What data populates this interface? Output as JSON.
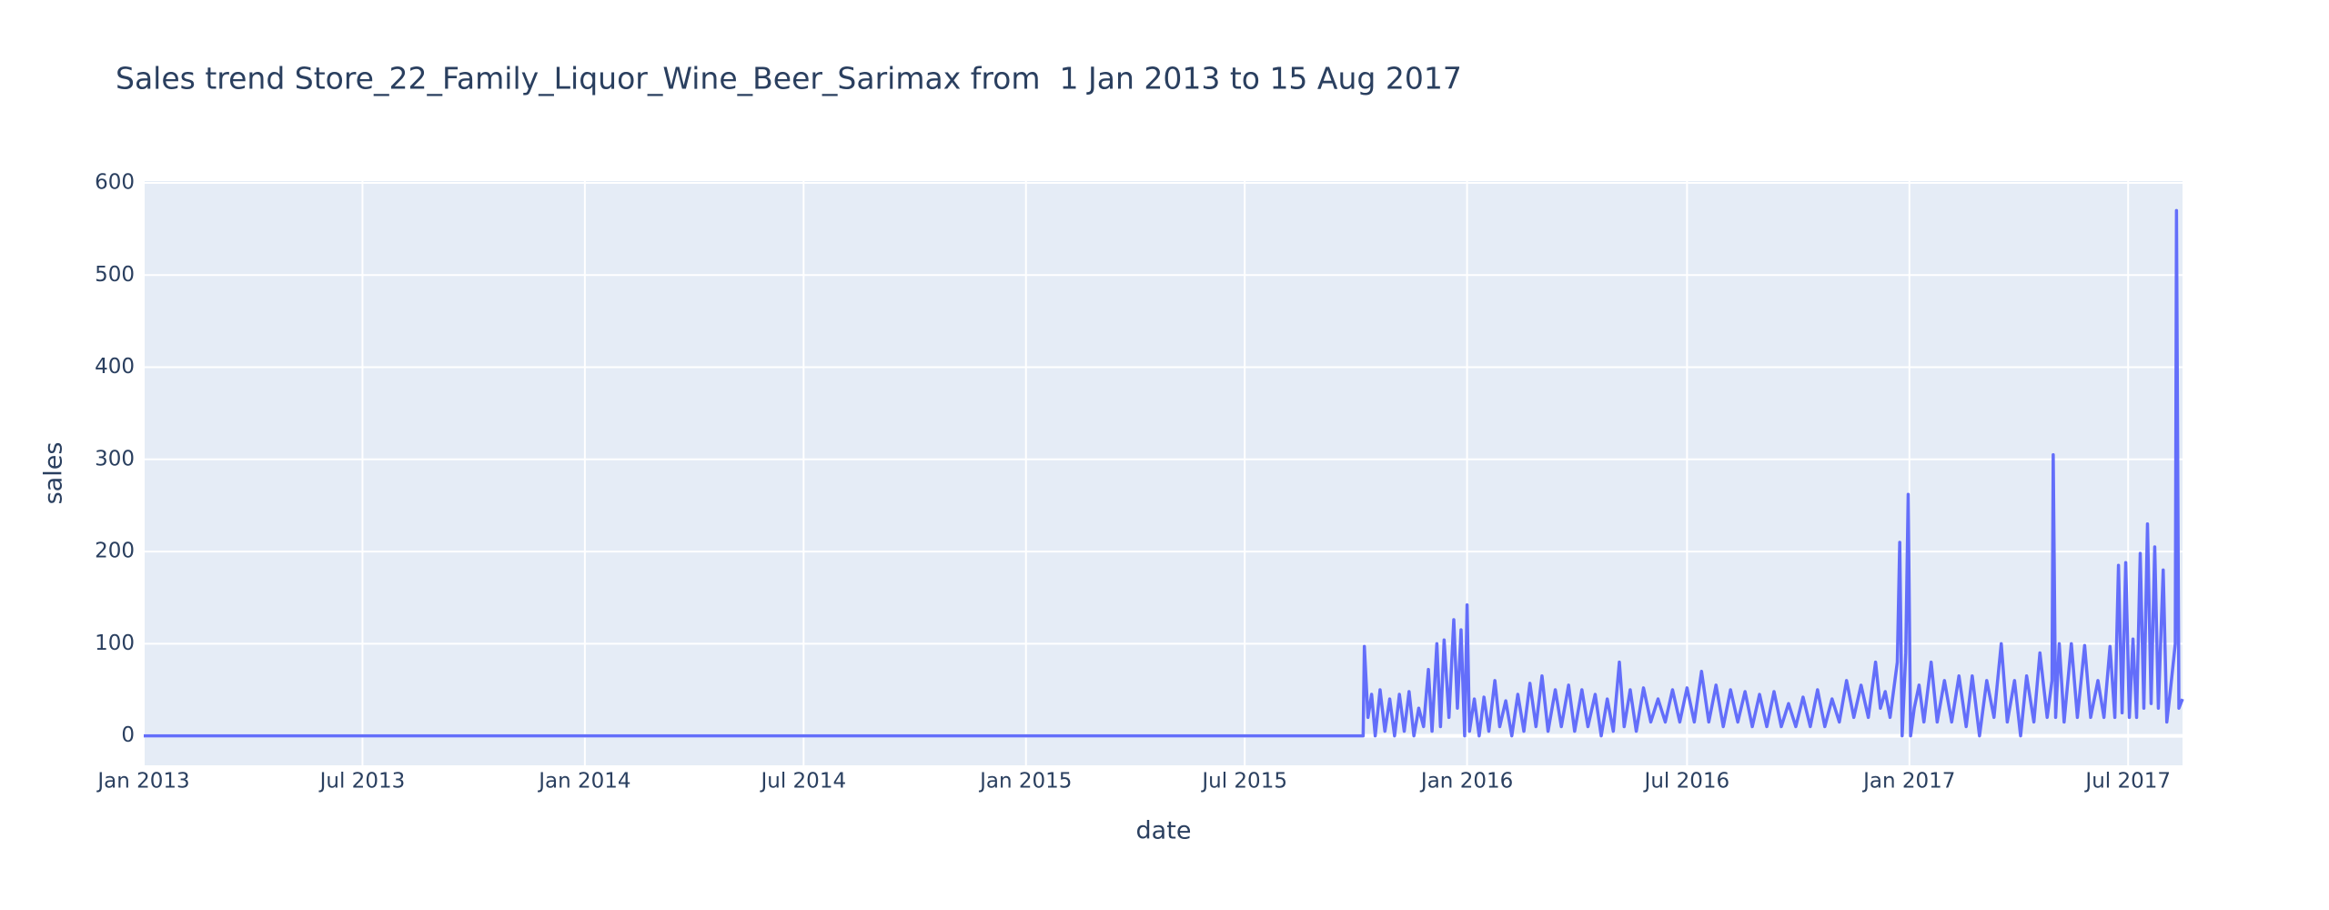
{
  "chart_data": {
    "type": "line",
    "title": "Sales trend Store_22_Family_Liquor_Wine_Beer_Sarimax from  1 Jan 2013 to 15 Aug 2017",
    "x_label": "date",
    "y_label": "sales",
    "x": [
      "2013-01-01",
      "2015-10-07",
      "2015-10-08",
      "2015-10-11",
      "2015-10-14",
      "2015-10-17",
      "2015-10-21",
      "2015-10-25",
      "2015-10-29",
      "2015-11-02",
      "2015-11-06",
      "2015-11-10",
      "2015-11-14",
      "2015-11-18",
      "2015-11-22",
      "2015-11-26",
      "2015-11-30",
      "2015-12-03",
      "2015-12-07",
      "2015-12-10",
      "2015-12-13",
      "2015-12-17",
      "2015-12-21",
      "2015-12-24",
      "2015-12-27",
      "2015-12-30",
      "2016-01-01",
      "2016-01-03",
      "2016-01-07",
      "2016-01-11",
      "2016-01-15",
      "2016-01-19",
      "2016-01-24",
      "2016-01-28",
      "2016-02-02",
      "2016-02-07",
      "2016-02-12",
      "2016-02-17",
      "2016-02-22",
      "2016-02-27",
      "2016-03-03",
      "2016-03-08",
      "2016-03-14",
      "2016-03-19",
      "2016-03-25",
      "2016-03-30",
      "2016-04-05",
      "2016-04-10",
      "2016-04-16",
      "2016-04-21",
      "2016-04-26",
      "2016-05-01",
      "2016-05-06",
      "2016-05-10",
      "2016-05-15",
      "2016-05-20",
      "2016-05-26",
      "2016-06-01",
      "2016-06-07",
      "2016-06-13",
      "2016-06-19",
      "2016-06-25",
      "2016-07-01",
      "2016-07-07",
      "2016-07-13",
      "2016-07-19",
      "2016-07-25",
      "2016-07-31",
      "2016-08-06",
      "2016-08-12",
      "2016-08-18",
      "2016-08-24",
      "2016-08-30",
      "2016-09-05",
      "2016-09-11",
      "2016-09-17",
      "2016-09-23",
      "2016-09-29",
      "2016-10-05",
      "2016-10-11",
      "2016-10-17",
      "2016-10-23",
      "2016-10-29",
      "2016-11-04",
      "2016-11-10",
      "2016-11-16",
      "2016-11-22",
      "2016-11-28",
      "2016-12-04",
      "2016-12-08",
      "2016-12-12",
      "2016-12-16",
      "2016-12-22",
      "2016-12-24",
      "2016-12-26",
      "2016-12-29",
      "2016-12-31",
      "2017-01-02",
      "2017-01-05",
      "2017-01-09",
      "2017-01-13",
      "2017-01-19",
      "2017-01-24",
      "2017-01-30",
      "2017-02-05",
      "2017-02-11",
      "2017-02-17",
      "2017-02-22",
      "2017-02-28",
      "2017-03-06",
      "2017-03-12",
      "2017-03-18",
      "2017-03-23",
      "2017-03-29",
      "2017-04-03",
      "2017-04-08",
      "2017-04-14",
      "2017-04-19",
      "2017-04-25",
      "2017-04-29",
      "2017-04-30",
      "2017-05-02",
      "2017-05-05",
      "2017-05-09",
      "2017-05-15",
      "2017-05-20",
      "2017-05-26",
      "2017-05-31",
      "2017-06-06",
      "2017-06-11",
      "2017-06-16",
      "2017-06-20",
      "2017-06-23",
      "2017-06-26",
      "2017-06-29",
      "2017-07-02",
      "2017-07-05",
      "2017-07-08",
      "2017-07-11",
      "2017-07-14",
      "2017-07-17",
      "2017-07-20",
      "2017-07-23",
      "2017-07-26",
      "2017-07-30",
      "2017-08-02",
      "2017-08-05",
      "2017-08-09",
      "2017-08-10",
      "2017-08-12",
      "2017-08-15"
    ],
    "series": [
      {
        "name": "sales",
        "color": "#636efa",
        "values": [
          0,
          0,
          97,
          20,
          45,
          0,
          50,
          5,
          40,
          0,
          45,
          5,
          48,
          0,
          30,
          10,
          72,
          5,
          100,
          10,
          104,
          20,
          126,
          30,
          115,
          0,
          142,
          5,
          40,
          0,
          42,
          5,
          60,
          10,
          38,
          0,
          45,
          5,
          57,
          10,
          65,
          5,
          50,
          10,
          55,
          5,
          50,
          10,
          45,
          0,
          40,
          5,
          80,
          10,
          50,
          5,
          52,
          15,
          40,
          15,
          50,
          15,
          52,
          15,
          70,
          15,
          55,
          10,
          50,
          15,
          48,
          10,
          45,
          10,
          48,
          10,
          35,
          10,
          42,
          10,
          50,
          10,
          40,
          15,
          60,
          20,
          55,
          20,
          80,
          30,
          48,
          20,
          80,
          210,
          0,
          90,
          262,
          0,
          30,
          55,
          15,
          80,
          15,
          60,
          15,
          65,
          10,
          65,
          0,
          60,
          20,
          100,
          15,
          60,
          0,
          65,
          15,
          90,
          20,
          60,
          305,
          20,
          100,
          15,
          100,
          20,
          98,
          20,
          60,
          20,
          97,
          20,
          185,
          25,
          188,
          20,
          105,
          20,
          198,
          30,
          230,
          35,
          205,
          30,
          180,
          15,
          50,
          100,
          570,
          30,
          40
        ]
      }
    ],
    "xlim": [
      "2013-01-01",
      "2017-08-15"
    ],
    "xticks": [
      {
        "value": "2013-01-01",
        "label": "Jan 2013"
      },
      {
        "value": "2013-07-01",
        "label": "Jul 2013"
      },
      {
        "value": "2014-01-01",
        "label": "Jan 2014"
      },
      {
        "value": "2014-07-01",
        "label": "Jul 2014"
      },
      {
        "value": "2015-01-01",
        "label": "Jan 2015"
      },
      {
        "value": "2015-07-01",
        "label": "Jul 2015"
      },
      {
        "value": "2016-01-01",
        "label": "Jan 2016"
      },
      {
        "value": "2016-07-01",
        "label": "Jul 2016"
      },
      {
        "value": "2017-01-01",
        "label": "Jan 2017"
      },
      {
        "value": "2017-07-01",
        "label": "Jul 2017"
      }
    ],
    "ylim": [
      -32,
      602
    ],
    "yticks": [
      0,
      100,
      200,
      300,
      400,
      500,
      600
    ],
    "grid": true
  }
}
